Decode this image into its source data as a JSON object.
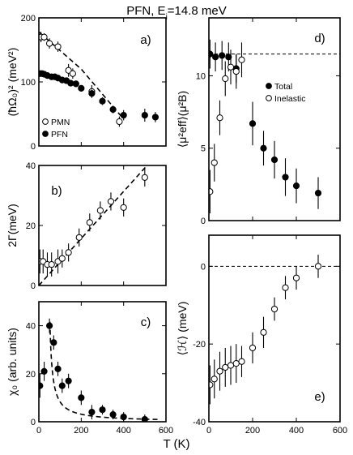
{
  "title": "PFN, E",
  "title_sub": "i",
  "title_rest": "=14.8 meV",
  "shared_xlabel": "T (K)",
  "chart_data": [
    {
      "id": "a",
      "type": "scatter",
      "panel_label": "a)",
      "ylabel": "(ħΩ₀)² (meV²)",
      "xlim": [
        0,
        600
      ],
      "ylim": [
        0,
        200
      ],
      "yticks": [
        0,
        100,
        200
      ],
      "xticks": [
        0,
        200,
        400,
        600
      ],
      "show_xtick_labels": false,
      "legend": {
        "placement": "bottom-left",
        "entries": [
          "PMN",
          "PFN"
        ]
      },
      "series": [
        {
          "name": "PMN",
          "marker": "open",
          "x": [
            10,
            25,
            50,
            90,
            140,
            160,
            250,
            380
          ],
          "y": [
            170,
            170,
            160,
            155,
            118,
            113,
            85,
            38
          ],
          "err": [
            8,
            6,
            8,
            8,
            10,
            8,
            10,
            8
          ]
        },
        {
          "name": "PFN",
          "marker": "filled",
          "x": [
            5,
            15,
            25,
            40,
            60,
            75,
            90,
            110,
            130,
            150,
            175,
            200,
            250,
            300,
            350,
            400,
            500,
            550
          ],
          "y": [
            113,
            113,
            112,
            110,
            108,
            108,
            106,
            103,
            102,
            98,
            97,
            90,
            82,
            70,
            57,
            48,
            48,
            45
          ],
          "err": [
            4,
            4,
            4,
            4,
            5,
            5,
            5,
            5,
            5,
            5,
            5,
            5,
            6,
            6,
            6,
            8,
            10,
            8
          ]
        }
      ],
      "fit_line": {
        "x": [
          0,
          200,
          400
        ],
        "y": [
          178,
          120,
          42
        ]
      }
    },
    {
      "id": "b",
      "type": "scatter",
      "panel_label": "b)",
      "ylabel": "2Γ(meV)",
      "xlim": [
        0,
        600
      ],
      "ylim": [
        0,
        40
      ],
      "yticks": [
        0,
        20,
        40
      ],
      "xticks": [
        0,
        200,
        400,
        600
      ],
      "show_xtick_labels": false,
      "series": [
        {
          "name": "",
          "marker": "open",
          "x": [
            5,
            20,
            40,
            60,
            90,
            110,
            140,
            190,
            240,
            290,
            340,
            400,
            500
          ],
          "y": [
            8,
            8,
            7,
            7,
            8,
            9,
            11,
            16,
            21,
            25,
            28,
            26,
            36
          ],
          "err": [
            4,
            4,
            4,
            4,
            4,
            3,
            3,
            3,
            3,
            3,
            3,
            3,
            3
          ]
        }
      ],
      "fit_line": {
        "x": [
          0,
          600
        ],
        "y": [
          0,
          47
        ]
      }
    },
    {
      "id": "c",
      "type": "scatter",
      "panel_label": "c)",
      "ylabel": "χ₀ (arb. units)",
      "xlim": [
        0,
        600
      ],
      "ylim": [
        0,
        50
      ],
      "yticks": [
        0,
        20,
        40
      ],
      "xticks": [
        0,
        200,
        400,
        600
      ],
      "show_xtick_labels": true,
      "series": [
        {
          "name": "",
          "marker": "filled",
          "x": [
            5,
            25,
            50,
            70,
            90,
            110,
            140,
            200,
            250,
            300,
            350,
            400,
            500
          ],
          "y": [
            15,
            21,
            40,
            33,
            22,
            15,
            17,
            10,
            4,
            5,
            3,
            2,
            1
          ],
          "err": [
            5,
            4,
            3,
            3,
            3,
            3,
            3,
            3,
            3,
            2,
            2,
            2,
            2
          ]
        }
      ],
      "fit_curve": {
        "form": "C/(T-T0)",
        "C": 500,
        "T0": 40,
        "x_start": 52,
        "x_end": 560
      }
    },
    {
      "id": "d",
      "type": "scatter",
      "panel_label": "d)",
      "ylabel": "⟨μ²eff⟩(μ²B)",
      "xlim": [
        0,
        600
      ],
      "ylim": [
        0,
        14
      ],
      "yticks": [
        0,
        5,
        10
      ],
      "xticks": [
        0,
        200,
        400,
        600
      ],
      "show_xtick_labels": false,
      "legend": {
        "placement": "upper-right",
        "entries": [
          "Total",
          "Inelastic"
        ]
      },
      "series": [
        {
          "name": "Total",
          "marker": "filled",
          "x": [
            5,
            30,
            60,
            90,
            125,
            200,
            250,
            300,
            350,
            400,
            500
          ],
          "y": [
            11.5,
            11.3,
            11.4,
            11.3,
            10.5,
            6.7,
            5.0,
            4.2,
            3.0,
            2.4,
            1.9
          ],
          "err": [
            1.0,
            1.0,
            1.0,
            1.0,
            1.0,
            1.5,
            1.2,
            1.3,
            1.3,
            1.2,
            1.1
          ]
        },
        {
          "name": "Inelastic",
          "marker": "open",
          "x": [
            5,
            25,
            50,
            75,
            100,
            125,
            150
          ],
          "y": [
            2.0,
            4.0,
            7.1,
            9.8,
            10.6,
            10.3,
            11.1
          ],
          "err": [
            1.5,
            1.3,
            1.2,
            1.2,
            1.2,
            1.2,
            1.2
          ]
        }
      ],
      "ref_line": {
        "y": 11.5,
        "style": "dashed"
      }
    },
    {
      "id": "e",
      "type": "scatter",
      "panel_label": "e)",
      "ylabel": "⟨ℋ⟩ (meV)",
      "xlim": [
        0,
        600
      ],
      "ylim": [
        -40,
        8
      ],
      "yticks": [
        -40,
        -20,
        0
      ],
      "xticks": [
        0,
        200,
        400,
        600
      ],
      "show_xtick_labels": true,
      "series": [
        {
          "name": "",
          "marker": "open",
          "x": [
            5,
            25,
            50,
            75,
            100,
            125,
            150,
            200,
            250,
            300,
            350,
            400,
            500
          ],
          "y": [
            -30.5,
            -29.0,
            -27.0,
            -26.0,
            -25.5,
            -25.0,
            -24.5,
            -21.0,
            -17.0,
            -11.0,
            -5.5,
            -3.0,
            0.0
          ],
          "err": [
            5,
            5,
            5,
            5,
            5,
            5,
            4,
            4,
            4,
            3,
            3,
            3,
            3
          ]
        }
      ],
      "ref_line": {
        "y": 0,
        "style": "dashed"
      }
    }
  ]
}
